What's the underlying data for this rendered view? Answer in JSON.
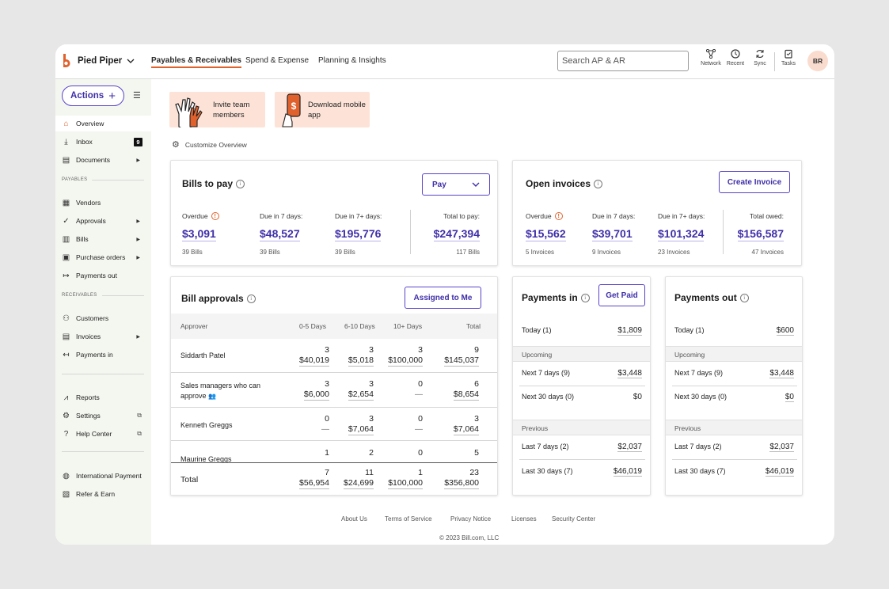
{
  "header": {
    "org_name": "Pied Piper",
    "tabs": [
      {
        "label": "Payables & Receivables"
      },
      {
        "label": "Spend & Expense"
      },
      {
        "label": "Planning & Insights"
      }
    ],
    "search_placeholder": "Search AP & AR",
    "tools": [
      {
        "label": "Network",
        "icon": "network-icon"
      },
      {
        "label": "Recent",
        "icon": "history-icon"
      },
      {
        "label": "Sync",
        "icon": "sync-icon"
      },
      {
        "label": "Tasks",
        "icon": "tasks-icon"
      }
    ],
    "avatar_initials": "BR"
  },
  "sidebar": {
    "actions_label": "Actions",
    "items": [
      {
        "label": "Overview"
      },
      {
        "label": "Inbox",
        "badge": "9"
      },
      {
        "label": "Documents"
      },
      {
        "label": "Vendors"
      },
      {
        "label": "Approvals"
      },
      {
        "label": "Bills"
      },
      {
        "label": "Purchase orders"
      },
      {
        "label": "Payments out"
      },
      {
        "label": "Customers"
      },
      {
        "label": "Invoices"
      },
      {
        "label": "Payments in"
      },
      {
        "label": "Reports"
      },
      {
        "label": "Settings"
      },
      {
        "label": "Help Center"
      },
      {
        "label": "International Payment"
      },
      {
        "label": "Refer & Earn"
      }
    ],
    "sections": {
      "payables": "PAYABLES",
      "receivables": "RECEIVABLES"
    }
  },
  "promos": {
    "invite": "Invite team members",
    "download": "Download mobile app"
  },
  "customize_label": "Customize Overview",
  "bills_to_pay": {
    "title": "Bills to pay",
    "pay_button": "Pay",
    "metrics": [
      {
        "label": "Overdue",
        "value": "$3,091",
        "sub": "39 Bills"
      },
      {
        "label": "Due in 7 days:",
        "value": "$48,527",
        "sub": "39 Bills"
      },
      {
        "label": "Due in 7+ days:",
        "value": "$195,776",
        "sub": "39 Bills"
      },
      {
        "label": "Total to pay:",
        "value": "$247,394",
        "sub": "117 Bills"
      }
    ]
  },
  "open_invoices": {
    "title": "Open invoices",
    "create_button": "Create Invoice",
    "metrics": [
      {
        "label": "Overdue",
        "value": "$15,562",
        "sub": "5 Invoices"
      },
      {
        "label": "Due in 7 days:",
        "value": "$39,701",
        "sub": "9 Invoices"
      },
      {
        "label": "Due in 7+ days:",
        "value": "$101,324",
        "sub": "23 Invoices"
      },
      {
        "label": "Total owed:",
        "value": "$156,587",
        "sub": "47 Invoices"
      }
    ]
  },
  "bill_approvals": {
    "title": "Bill approvals",
    "assigned_button": "Assigned to Me",
    "columns": [
      "Approver",
      "0-5 Days",
      "6-10 Days",
      "10+ Days",
      "Total"
    ],
    "rows": [
      {
        "name": "Siddarth Patel",
        "cells": [
          [
            "3",
            "$40,019"
          ],
          [
            "3",
            "$5,018"
          ],
          [
            "3",
            "$100,000"
          ],
          [
            "9",
            "$145,037"
          ]
        ]
      },
      {
        "name": "Sales managers  who can approve",
        "cells": [
          [
            "3",
            "$6,000"
          ],
          [
            "3",
            "$2,654"
          ],
          [
            "0",
            "—"
          ],
          [
            "6",
            "$8,654"
          ]
        ]
      },
      {
        "name": "Kenneth Greggs",
        "cells": [
          [
            "0",
            "—"
          ],
          [
            "3",
            "$7,064"
          ],
          [
            "0",
            "—"
          ],
          [
            "3",
            "$7,064"
          ]
        ]
      },
      {
        "name": "Maurine Greggs",
        "cells": [
          [
            "1",
            ""
          ],
          [
            "2",
            ""
          ],
          [
            "0",
            ""
          ],
          [
            "5",
            ""
          ]
        ]
      }
    ],
    "total": {
      "label": "Total",
      "cells": [
        [
          "7",
          "$56,954"
        ],
        [
          "11",
          "$24,699"
        ],
        [
          "1",
          "$100,000"
        ],
        [
          "23",
          "$356,800"
        ]
      ]
    }
  },
  "payments_in": {
    "title": "Payments in",
    "get_paid_button": "Get Paid",
    "today": {
      "label": "Today (1)",
      "value": "$1,809"
    },
    "upcoming_label": "Upcoming",
    "upcoming": [
      {
        "label": "Next 7 days (9)",
        "value": "$3,448"
      },
      {
        "label": "Next 30 days (0)",
        "value": "$0"
      }
    ],
    "previous_label": "Previous",
    "previous": [
      {
        "label": "Last 7 days (2)",
        "value": "$2,037"
      },
      {
        "label": "Last  30 days (7)",
        "value": "$46,019"
      }
    ]
  },
  "payments_out": {
    "title": "Payments out",
    "today": {
      "label": "Today (1)",
      "value": "$600"
    },
    "upcoming_label": "Upcoming",
    "upcoming": [
      {
        "label": "Next 7 days (9)",
        "value": "$3,448"
      },
      {
        "label": "Next 30 days (0)",
        "value": "$0"
      }
    ],
    "previous_label": "Previous",
    "previous": [
      {
        "label": "Last 7 days (2)",
        "value": "$2,037"
      },
      {
        "label": "Last  30 days (7)",
        "value": "$46,019"
      }
    ]
  },
  "footer": {
    "links": [
      "About Us",
      "Terms of Service",
      "Privacy Notice",
      "Licenses",
      "Security Center"
    ],
    "copyright": "© 2023 Bill.com, LLC"
  },
  "colors": {
    "accent": "#3f2fa8",
    "brand": "#e0612c",
    "promo_bg": "#fde3d7"
  }
}
